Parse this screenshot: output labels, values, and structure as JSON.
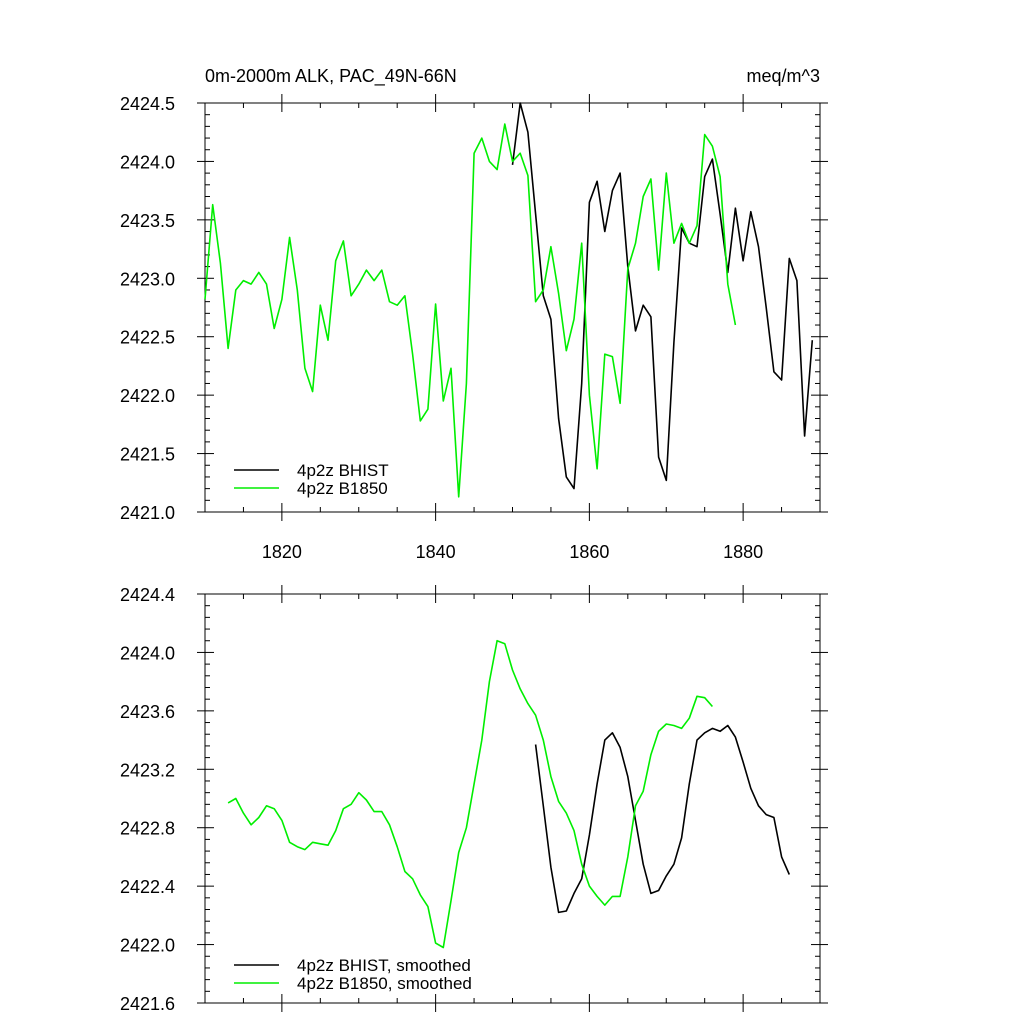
{
  "chart_data": [
    {
      "type": "line",
      "title": "0m-2000m ALK, PAC_49N-66N",
      "units": "meq/m^3",
      "xlim": [
        1810,
        1890
      ],
      "ylim": [
        2421.0,
        2424.5
      ],
      "x_ticks": [
        1820,
        1840,
        1860,
        1880
      ],
      "x_tick_labels": [
        "1820",
        "1840",
        "1860",
        "1880"
      ],
      "y_ticks": [
        2421.0,
        2421.5,
        2422.0,
        2422.5,
        2423.0,
        2423.5,
        2424.0,
        2424.5
      ],
      "y_tick_labels": [
        "2421.0",
        "2421.5",
        "2422.0",
        "2422.5",
        "2423.0",
        "2423.5",
        "2424.0",
        "2424.5"
      ],
      "legend_position": "bottom-left",
      "series": [
        {
          "name": "4p2z BHIST",
          "color": "#000000",
          "x": [
            1850,
            1851,
            1852,
            1853,
            1854,
            1855,
            1856,
            1857,
            1858,
            1859,
            1860,
            1861,
            1862,
            1863,
            1864,
            1865,
            1866,
            1867,
            1868,
            1869,
            1870,
            1871,
            1872,
            1873,
            1874,
            1875,
            1876,
            1877,
            1878,
            1879,
            1880,
            1881,
            1882,
            1883,
            1884,
            1885,
            1886,
            1887,
            1888,
            1889
          ],
          "y": [
            2423.97,
            2424.5,
            2424.25,
            2423.55,
            2422.85,
            2422.65,
            2421.8,
            2421.3,
            2421.2,
            2422.1,
            2423.65,
            2423.83,
            2423.4,
            2423.75,
            2423.9,
            2423.1,
            2422.55,
            2422.77,
            2422.67,
            2421.47,
            2421.27,
            2422.45,
            2423.43,
            2423.3,
            2423.27,
            2423.87,
            2424.02,
            2423.55,
            2423.05,
            2423.6,
            2423.15,
            2423.57,
            2423.27,
            2422.75,
            2422.2,
            2422.13,
            2423.17,
            2422.98,
            2421.65,
            2422.47
          ]
        },
        {
          "name": "4p2z B1850",
          "color": "#00ee00",
          "x": [
            1810,
            1811,
            1812,
            1813,
            1814,
            1815,
            1816,
            1817,
            1818,
            1819,
            1820,
            1821,
            1822,
            1823,
            1824,
            1825,
            1826,
            1827,
            1828,
            1829,
            1830,
            1831,
            1832,
            1833,
            1834,
            1835,
            1836,
            1837,
            1838,
            1839,
            1840,
            1841,
            1842,
            1843,
            1844,
            1845,
            1846,
            1847,
            1848,
            1849,
            1850,
            1851,
            1852,
            1853,
            1854,
            1855,
            1856,
            1857,
            1858,
            1859,
            1860,
            1861,
            1862,
            1863,
            1864,
            1865,
            1866,
            1867,
            1868,
            1869,
            1870,
            1871,
            1872,
            1873,
            1874,
            1875,
            1876,
            1877,
            1878,
            1879
          ],
          "y": [
            2422.82,
            2423.63,
            2423.13,
            2422.4,
            2422.9,
            2422.98,
            2422.95,
            2423.05,
            2422.95,
            2422.57,
            2422.82,
            2423.35,
            2422.9,
            2422.23,
            2422.03,
            2422.77,
            2422.47,
            2423.15,
            2423.32,
            2422.85,
            2422.95,
            2423.07,
            2422.98,
            2423.07,
            2422.8,
            2422.77,
            2422.85,
            2422.35,
            2421.78,
            2421.88,
            2422.78,
            2421.95,
            2422.23,
            2421.13,
            2422.1,
            2424.07,
            2424.2,
            2424.0,
            2423.93,
            2424.32,
            2424.0,
            2424.07,
            2423.88,
            2422.8,
            2422.9,
            2423.27,
            2422.87,
            2422.38,
            2422.65,
            2423.3,
            2422.0,
            2421.37,
            2422.35,
            2422.33,
            2421.93,
            2423.08,
            2423.3,
            2423.7,
            2423.85,
            2423.07,
            2423.9,
            2423.3,
            2423.47,
            2423.3,
            2423.45,
            2424.23,
            2424.13,
            2423.87,
            2422.95,
            2422.6
          ]
        }
      ]
    },
    {
      "type": "line",
      "xlim": [
        1810,
        1890
      ],
      "ylim": [
        2421.6,
        2424.4
      ],
      "y_ticks": [
        2421.6,
        2422.0,
        2422.4,
        2422.8,
        2423.2,
        2423.6,
        2424.0,
        2424.4
      ],
      "y_tick_labels": [
        "2421.6",
        "2422.0",
        "2422.4",
        "2422.8",
        "2423.2",
        "2423.6",
        "2424.0",
        "2424.4"
      ],
      "legend_position": "bottom-left",
      "series": [
        {
          "name": "4p2z BHIST, smoothed",
          "color": "#000000",
          "x": [
            1853,
            1854,
            1855,
            1856,
            1857,
            1858,
            1859,
            1860,
            1861,
            1862,
            1863,
            1864,
            1865,
            1866,
            1867,
            1868,
            1869,
            1870,
            1871,
            1872,
            1873,
            1874,
            1875,
            1876,
            1877,
            1878,
            1879,
            1880,
            1881,
            1882,
            1883,
            1884,
            1885,
            1886
          ],
          "y": [
            2423.37,
            2422.95,
            2422.53,
            2422.22,
            2422.23,
            2422.35,
            2422.45,
            2422.75,
            2423.1,
            2423.4,
            2423.45,
            2423.35,
            2423.15,
            2422.85,
            2422.55,
            2422.35,
            2422.37,
            2422.47,
            2422.55,
            2422.73,
            2423.1,
            2423.4,
            2423.45,
            2423.48,
            2423.46,
            2423.5,
            2423.42,
            2423.25,
            2423.07,
            2422.95,
            2422.89,
            2422.87,
            2422.6,
            2422.48
          ]
        },
        {
          "name": "4p2z B1850, smoothed",
          "color": "#00ee00",
          "x": [
            1813,
            1814,
            1815,
            1816,
            1817,
            1818,
            1819,
            1820,
            1821,
            1822,
            1823,
            1824,
            1825,
            1826,
            1827,
            1828,
            1829,
            1830,
            1831,
            1832,
            1833,
            1834,
            1835,
            1836,
            1837,
            1838,
            1839,
            1840,
            1841,
            1842,
            1843,
            1844,
            1845,
            1846,
            1847,
            1848,
            1849,
            1850,
            1851,
            1852,
            1853,
            1854,
            1855,
            1856,
            1857,
            1858,
            1859,
            1860,
            1861,
            1862,
            1863,
            1864,
            1865,
            1866,
            1867,
            1868,
            1869,
            1870,
            1871,
            1872,
            1873,
            1874,
            1875,
            1876
          ],
          "y": [
            2422.97,
            2423.0,
            2422.9,
            2422.82,
            2422.87,
            2422.95,
            2422.93,
            2422.85,
            2422.7,
            2422.67,
            2422.65,
            2422.7,
            2422.69,
            2422.68,
            2422.78,
            2422.93,
            2422.96,
            2423.04,
            2422.99,
            2422.91,
            2422.91,
            2422.82,
            2422.67,
            2422.5,
            2422.45,
            2422.34,
            2422.26,
            2422.01,
            2421.98,
            2422.3,
            2422.63,
            2422.8,
            2423.1,
            2423.4,
            2423.8,
            2424.08,
            2424.06,
            2423.88,
            2423.75,
            2423.65,
            2423.57,
            2423.4,
            2423.15,
            2422.98,
            2422.9,
            2422.78,
            2422.55,
            2422.4,
            2422.33,
            2422.27,
            2422.33,
            2422.33,
            2422.6,
            2422.95,
            2423.05,
            2423.3,
            2423.46,
            2423.51,
            2423.5,
            2423.48,
            2423.55,
            2423.7,
            2423.69,
            2423.63
          ]
        }
      ]
    }
  ]
}
